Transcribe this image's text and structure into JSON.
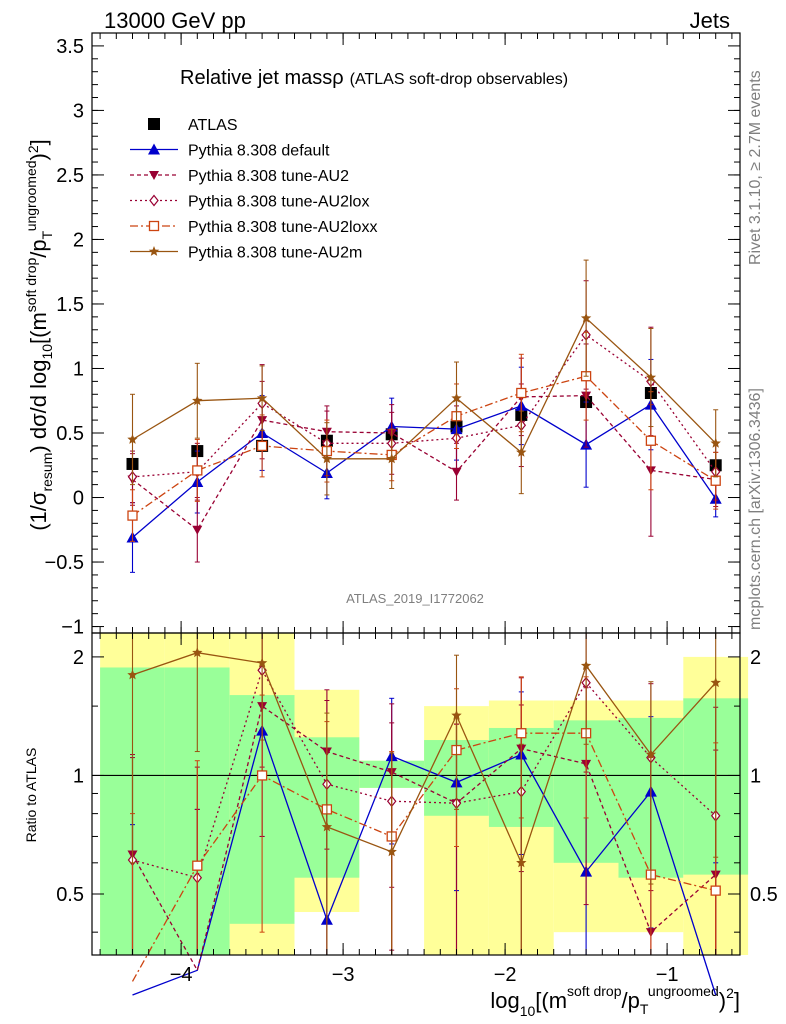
{
  "header": {
    "left_label": "13000 GeV pp",
    "right_label": "Jets"
  },
  "side_labels": {
    "rivet": "Rivet 3.1.10, ≥ 2.7M events",
    "mcplots": "mcplots.cern.ch [arXiv:1306.3436]"
  },
  "analysis_id": "ATLAS_2019_I1772062",
  "chart_data": [
    {
      "type": "line",
      "panel": "main",
      "title_main": "Relative jet mass",
      "title_rho": "ρ",
      "title_sub": "(ATLAS soft-drop observables)",
      "ylabel": "(1/σresum) dσ/d log10[(m^soft drop/pT^ungroomed)^2]",
      "ylim": [
        -1.05,
        3.6
      ],
      "y_ticks": [
        -1,
        -0.5,
        0,
        0.5,
        1,
        1.5,
        2,
        2.5,
        3,
        3.5
      ],
      "y_tick_labels": [
        "−1",
        "−0.5",
        "0",
        "0.5",
        "1",
        "1.5",
        "2",
        "2.5",
        "3",
        "3.5"
      ],
      "x": [
        -4.3,
        -3.9,
        -3.5,
        -3.1,
        -2.7,
        -2.3,
        -1.9,
        -1.5,
        -1.1,
        -0.7
      ],
      "series": [
        {
          "name": "ATLAS",
          "color": "#000000",
          "marker": "square",
          "values": [
            0.26,
            0.36,
            0.4,
            0.44,
            0.49,
            0.55,
            0.64,
            0.74,
            0.81,
            0.25
          ],
          "errors": [
            0.02,
            0.02,
            0.03,
            0.03,
            0.03,
            0.03,
            0.03,
            0.03,
            0.04,
            0.02
          ]
        },
        {
          "name": "Pythia 8.308 default",
          "color": "#0000cc",
          "marker": "triangle-up",
          "dash": "",
          "values": [
            -0.31,
            0.12,
            0.5,
            0.19,
            0.55,
            0.53,
            0.71,
            0.41,
            0.72,
            -0.01
          ],
          "errors": [
            0.27,
            0.24,
            0.29,
            0.2,
            0.22,
            0.24,
            0.3,
            0.33,
            0.35,
            0.14
          ]
        },
        {
          "name": "Pythia 8.308 tune-AU2",
          "color": "#990033",
          "marker": "triangle-down",
          "dash": "4,3",
          "values": [
            0.14,
            -0.25,
            0.6,
            0.51,
            0.5,
            0.2,
            0.78,
            0.79,
            0.21,
            0.14
          ],
          "errors": [
            0.2,
            0.25,
            0.3,
            0.2,
            0.22,
            0.22,
            0.3,
            0.4,
            0.51,
            0.21
          ]
        },
        {
          "name": "Pythia 8.308 tune-AU2lox",
          "color": "#990033",
          "marker": "diamond",
          "dash": "2,3",
          "values": [
            0.16,
            0.2,
            0.73,
            0.42,
            0.42,
            0.46,
            0.56,
            1.26,
            0.9,
            0.2
          ],
          "errors": [
            0.2,
            0.22,
            0.3,
            0.25,
            0.24,
            0.25,
            0.32,
            0.42,
            0.42,
            0.22
          ]
        },
        {
          "name": "Pythia 8.308 tune-AU2loxx",
          "color": "#cc4411",
          "marker": "square-open",
          "dash": "8,3,2,3",
          "values": [
            -0.14,
            0.21,
            0.4,
            0.36,
            0.33,
            0.63,
            0.81,
            0.94,
            0.44,
            0.13
          ],
          "errors": [
            0.2,
            0.24,
            0.24,
            0.24,
            0.2,
            0.25,
            0.3,
            0.34,
            0.38,
            0.22
          ]
        },
        {
          "name": "Pythia 8.308 tune-AU2m",
          "color": "#995511",
          "marker": "star",
          "dash": "",
          "values": [
            0.45,
            0.75,
            0.77,
            0.3,
            0.3,
            0.77,
            0.35,
            1.39,
            0.93,
            0.42
          ],
          "errors": [
            0.35,
            0.29,
            0.25,
            0.28,
            0.23,
            0.28,
            0.32,
            0.45,
            0.38,
            0.26
          ]
        }
      ]
    },
    {
      "type": "line",
      "panel": "ratio",
      "ylabel": "Ratio to ATLAS",
      "reference_line": 1,
      "ylim": [
        0.35,
        2.3
      ],
      "y_ticks": [
        0.5,
        1,
        2
      ],
      "y_tick_labels": [
        "0.5",
        "1",
        "2"
      ],
      "xlabel": "log10[(m^soft drop/pT^ungroomed)^2]",
      "xlim": [
        -4.55,
        -0.55
      ],
      "x_ticks": [
        -4,
        -3,
        -2,
        -1
      ],
      "x_tick_labels": [
        "−4",
        "−3",
        "−2",
        "−1"
      ],
      "x_bins": [
        [
          -4.5,
          -4.1
        ],
        [
          -4.1,
          -3.7
        ],
        [
          -3.7,
          -3.3
        ],
        [
          -3.3,
          -2.9
        ],
        [
          -2.9,
          -2.5
        ],
        [
          -2.5,
          -2.1
        ],
        [
          -2.1,
          -1.7
        ],
        [
          -1.7,
          -1.3
        ],
        [
          -1.3,
          -0.9
        ],
        [
          -0.9,
          -0.5
        ]
      ],
      "band_yellow": [
        [
          0.35,
          2.3
        ],
        [
          0.35,
          2.3
        ],
        [
          0.35,
          2.3
        ],
        [
          0.45,
          1.65
        ],
        [
          0.93,
          1.09
        ],
        [
          0.35,
          1.5
        ],
        [
          0.35,
          1.55
        ],
        [
          0.4,
          1.55
        ],
        [
          0.4,
          1.55
        ],
        [
          0.35,
          2.0
        ]
      ],
      "band_green": [
        [
          0.35,
          1.88
        ],
        [
          0.35,
          1.88
        ],
        [
          0.42,
          1.6
        ],
        [
          0.55,
          1.25
        ],
        [
          0.93,
          1.09
        ],
        [
          0.79,
          1.23
        ],
        [
          0.74,
          1.32
        ],
        [
          0.6,
          1.38
        ],
        [
          0.55,
          1.4
        ],
        [
          0.56,
          1.57
        ]
      ],
      "series": [
        {
          "name": "Pythia 8.308 default",
          "color": "#0000cc",
          "marker": "triangle-up",
          "dash": "",
          "values": [
            0.25,
            0.32,
            1.3,
            0.43,
            1.12,
            0.96,
            1.13,
            0.57,
            0.91,
            0.2
          ],
          "errors": [
            0.5,
            0.5,
            0.6,
            0.4,
            0.45,
            0.45,
            0.5,
            0.5,
            0.5,
            0.4
          ]
        },
        {
          "name": "Pythia 8.308 tune-AU2",
          "color": "#990033",
          "marker": "triangle-down",
          "dash": "4,3",
          "values": [
            0.63,
            0.32,
            1.5,
            1.15,
            1.02,
            0.85,
            1.17,
            1.07,
            0.4,
            0.56
          ],
          "errors": [
            0.5,
            0.5,
            0.8,
            0.5,
            0.5,
            0.5,
            0.6,
            0.6,
            0.7,
            0.6
          ]
        },
        {
          "name": "Pythia 8.308 tune-AU2lox",
          "color": "#990033",
          "marker": "diamond",
          "dash": "2,3",
          "values": [
            0.61,
            0.55,
            1.85,
            0.95,
            0.86,
            0.85,
            0.91,
            1.72,
            1.11,
            0.79
          ],
          "errors": [
            0.5,
            0.5,
            0.8,
            0.6,
            0.5,
            0.5,
            0.6,
            0.7,
            0.6,
            0.7
          ]
        },
        {
          "name": "Pythia 8.308 tune-AU2loxx",
          "color": "#cc4411",
          "marker": "square-open",
          "dash": "8,3,2,3",
          "values": [
            0.3,
            0.59,
            1.0,
            0.82,
            0.7,
            1.16,
            1.28,
            1.28,
            0.56,
            0.51
          ],
          "errors": [
            0.5,
            0.5,
            0.6,
            0.55,
            0.45,
            0.5,
            0.5,
            0.5,
            0.55,
            0.7
          ]
        },
        {
          "name": "Pythia 8.308 tune-AU2m",
          "color": "#995511",
          "marker": "star",
          "dash": "",
          "values": [
            1.8,
            2.05,
            1.93,
            0.74,
            0.64,
            1.42,
            0.6,
            1.9,
            1.13,
            1.72
          ],
          "errors": [
            1.2,
            0.9,
            0.7,
            0.7,
            0.5,
            0.6,
            0.6,
            0.7,
            0.6,
            1.1
          ]
        }
      ]
    }
  ]
}
